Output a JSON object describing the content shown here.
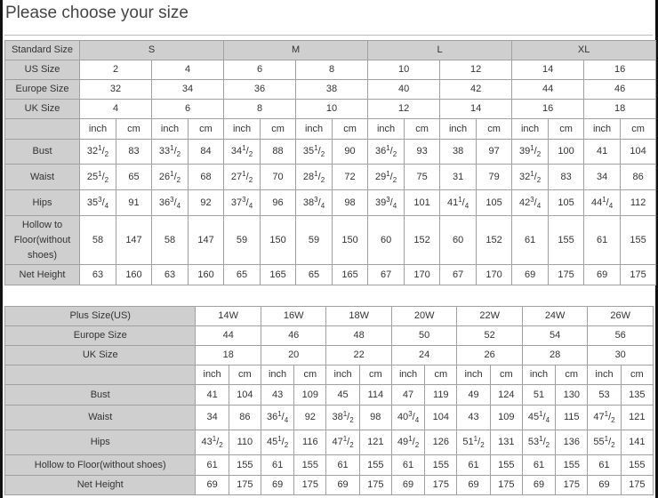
{
  "title": "Please choose your size",
  "colors": {
    "header_bg": "#cfcfcf",
    "border": "#a0a0a0",
    "text": "#333333"
  },
  "standard_table": {
    "standard_label": "Standard Size",
    "standard_sizes": [
      "S",
      "M",
      "L",
      "XL"
    ],
    "us_label": "US Size",
    "us_sizes": [
      "2",
      "4",
      "6",
      "8",
      "10",
      "12",
      "14",
      "16"
    ],
    "europe_label": "Europe Size",
    "europe_sizes": [
      "32",
      "34",
      "36",
      "38",
      "40",
      "42",
      "44",
      "46"
    ],
    "uk_label": "UK Size",
    "uk_sizes": [
      "4",
      "6",
      "8",
      "10",
      "12",
      "14",
      "16",
      "18"
    ],
    "unit_inch": "inch",
    "unit_cm": "cm",
    "measurements": [
      {
        "label": "Bust",
        "values": [
          "32 1/2",
          "83",
          "33 1/2",
          "84",
          "34 1/2",
          "88",
          "35 1/2",
          "90",
          "36 1/2",
          "93",
          "38",
          "97",
          "39 1/2",
          "100",
          "41",
          "104"
        ]
      },
      {
        "label": "Waist",
        "values": [
          "25 1/2",
          "65",
          "26 1/2",
          "68",
          "27 1/2",
          "70",
          "28 1/2",
          "72",
          "29 1/2",
          "75",
          "31",
          "79",
          "32 1/2",
          "83",
          "34",
          "86"
        ]
      },
      {
        "label": "Hips",
        "values": [
          "35 3/4",
          "91",
          "36 3/4",
          "92",
          "37 3/4",
          "96",
          "38 3/4",
          "98",
          "39 3/4",
          "101",
          "41 1/4",
          "105",
          "42 3/4",
          "105",
          "44 1/4",
          "112"
        ]
      },
      {
        "label": "Hollow to Floor(without shoes)",
        "values": [
          "58",
          "147",
          "58",
          "147",
          "59",
          "150",
          "59",
          "150",
          "60",
          "152",
          "60",
          "152",
          "61",
          "155",
          "61",
          "155"
        ]
      },
      {
        "label": "Net Height",
        "values": [
          "63",
          "160",
          "63",
          "160",
          "65",
          "165",
          "65",
          "165",
          "67",
          "170",
          "67",
          "170",
          "69",
          "175",
          "69",
          "175"
        ]
      }
    ]
  },
  "plus_table": {
    "plus_label": "Plus Size(US)",
    "plus_sizes": [
      "14W",
      "16W",
      "18W",
      "20W",
      "22W",
      "24W",
      "26W"
    ],
    "europe_label": "Europe Size",
    "europe_sizes": [
      "44",
      "46",
      "48",
      "50",
      "52",
      "54",
      "56"
    ],
    "uk_label": "UK Size",
    "uk_sizes": [
      "18",
      "20",
      "22",
      "24",
      "26",
      "28",
      "30"
    ],
    "unit_inch": "inch",
    "unit_cm": "cm",
    "measurements": [
      {
        "label": "Bust",
        "values": [
          "41",
          "104",
          "43",
          "109",
          "45",
          "114",
          "47",
          "119",
          "49",
          "124",
          "51",
          "130",
          "53",
          "135"
        ]
      },
      {
        "label": "Waist",
        "values": [
          "34",
          "86",
          "36 1/4",
          "92",
          "38 1/2",
          "98",
          "40 3/4",
          "104",
          "43",
          "109",
          "45 1/4",
          "115",
          "47 1/2",
          "121"
        ]
      },
      {
        "label": "Hips",
        "values": [
          "43 1/2",
          "110",
          "45 1/2",
          "116",
          "47 1/2",
          "121",
          "49 1/2",
          "126",
          "51 1/2",
          "131",
          "53 1/2",
          "136",
          "55 1/2",
          "141"
        ]
      },
      {
        "label": "Hollow to Floor(without shoes)",
        "values": [
          "61",
          "155",
          "61",
          "155",
          "61",
          "155",
          "61",
          "155",
          "61",
          "155",
          "61",
          "155",
          "61",
          "155"
        ]
      },
      {
        "label": "Net Height",
        "values": [
          "69",
          "175",
          "69",
          "175",
          "69",
          "175",
          "69",
          "175",
          "69",
          "175",
          "69",
          "175",
          "69",
          "175"
        ]
      }
    ]
  }
}
